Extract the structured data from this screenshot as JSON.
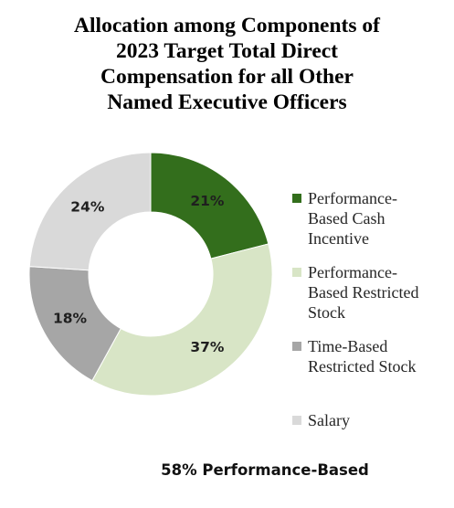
{
  "chart_data": {
    "type": "pie",
    "title_lines": [
      "Allocation among Components of",
      "2023 Target Total Direct",
      "Compensation for all Other",
      "Named Executive Officers"
    ],
    "slices": [
      {
        "label_lines": [
          "Performance-",
          "Based Cash",
          "Incentive"
        ],
        "value": 21,
        "display": "21%",
        "color": "#336e1c"
      },
      {
        "label_lines": [
          "Performance-",
          "Based Restricted",
          "Stock"
        ],
        "value": 37,
        "display": "37%",
        "color": "#d8e5c6"
      },
      {
        "label_lines": [
          "Time-Based",
          "Restricted Stock"
        ],
        "value": 18,
        "display": "18%",
        "color": "#a6a6a6"
      },
      {
        "label_lines": [
          "Salary"
        ],
        "value": 24,
        "display": "24%",
        "color": "#d9d9d9"
      }
    ],
    "legend_position": "right",
    "donut": true,
    "footnote": "58% Performance-Based"
  }
}
